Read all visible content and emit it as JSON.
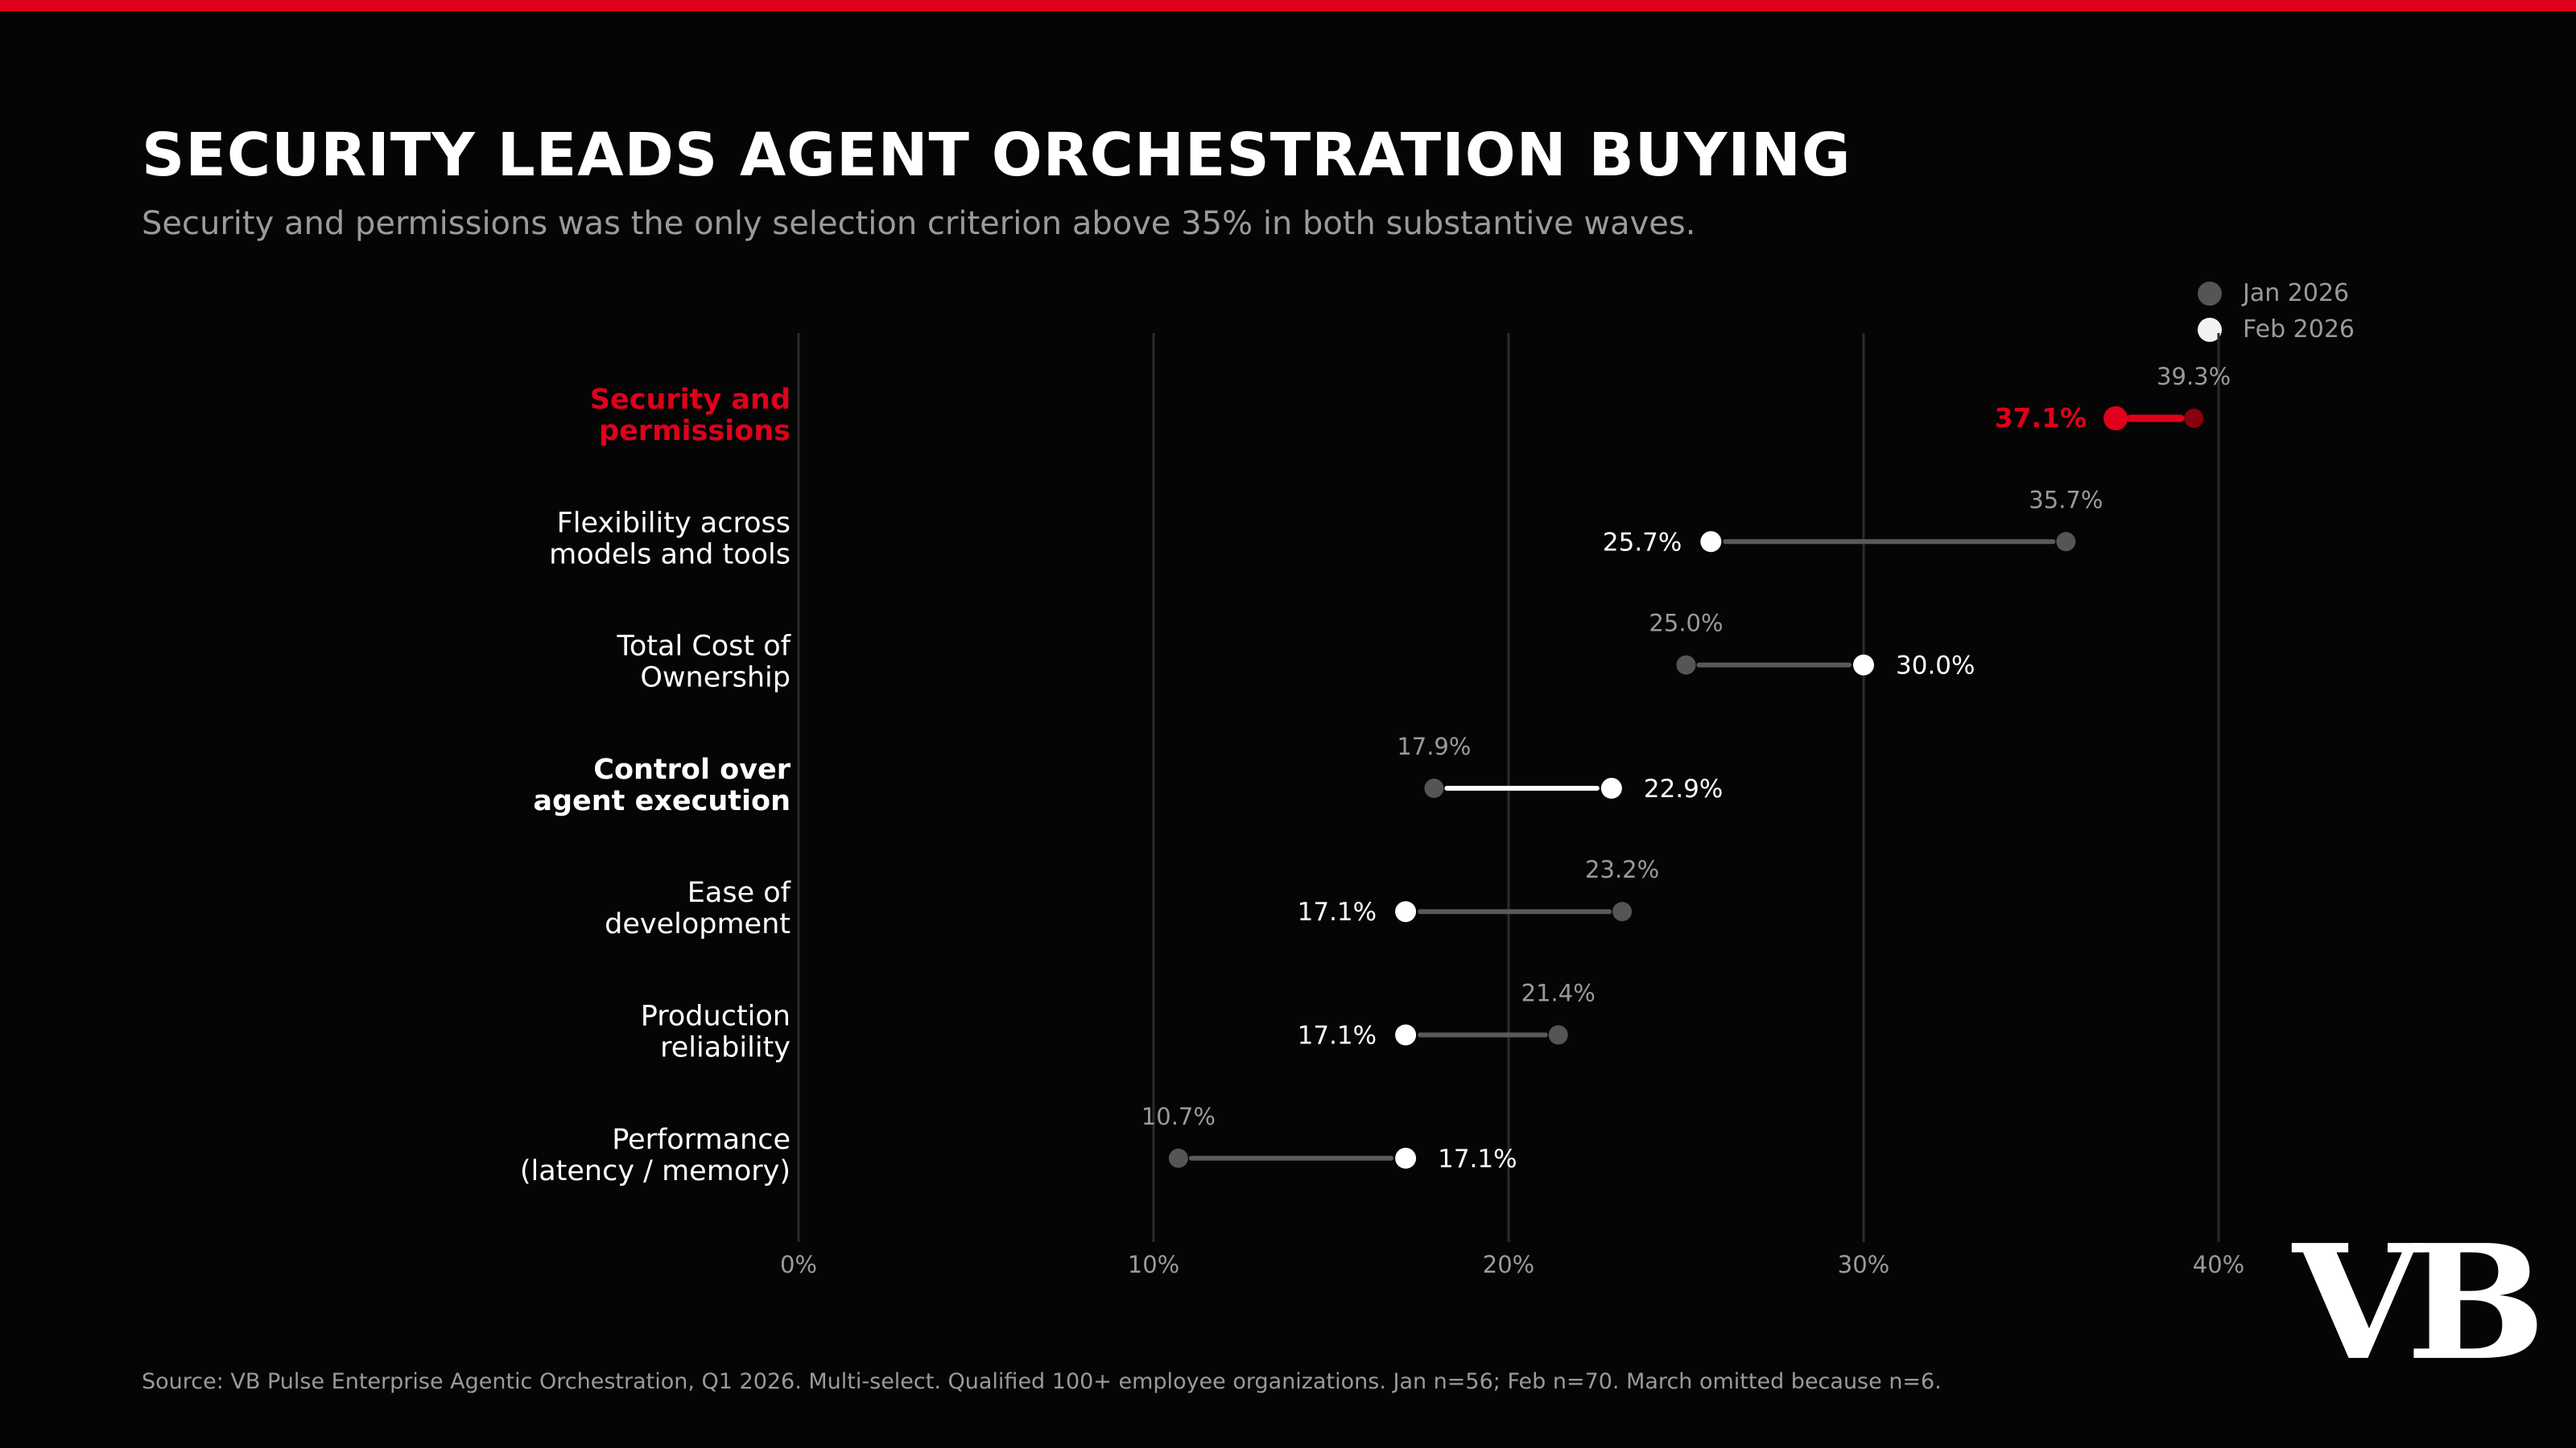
{
  "header": {
    "title": "SECURITY LEADS AGENT ORCHESTRATION BUYING",
    "subtitle": "Security and permissions was the only selection criterion above 35% in both substantive waves."
  },
  "legend": {
    "items": [
      {
        "label": "Jan 2026",
        "color": "#555555"
      },
      {
        "label": "Feb 2026",
        "color": "#f2f2f2"
      }
    ]
  },
  "footer": {
    "source": "Source: VB Pulse Enterprise Agentic Orchestration, Q1 2026. Multi-select. Qualified 100+ employee organizations. Jan n=56; Feb n=70. March omitted because n=6."
  },
  "brand": {
    "logo_text": "VB"
  },
  "colors": {
    "background": "#050505",
    "accent": "#e0001b",
    "accent_dark": "#8a0010",
    "jan": "#555555",
    "feb": "#ffffff",
    "muted_text": "#9a9a9a",
    "gridline": "#2b2b2b"
  },
  "chart_data": {
    "type": "dumbbell",
    "x_ticks": [
      "0%",
      "10%",
      "20%",
      "30%",
      "40%"
    ],
    "xlim": [
      0,
      40
    ],
    "grid": true,
    "legend_position": "top-right",
    "series": [
      {
        "name": "Jan 2026"
      },
      {
        "name": "Feb 2026"
      }
    ],
    "rows": [
      {
        "category": [
          "Security and",
          "permissions"
        ],
        "jan": 39.3,
        "feb": 37.1,
        "jan_label": "39.3%",
        "feb_label": "37.1%",
        "style": "accent"
      },
      {
        "category": [
          "Flexibility across",
          "models and tools"
        ],
        "jan": 35.7,
        "feb": 25.7,
        "jan_label": "35.7%",
        "feb_label": "25.7%",
        "style": "normal"
      },
      {
        "category": [
          "Total Cost of",
          "Ownership"
        ],
        "jan": 25.0,
        "feb": 30.0,
        "jan_label": "25.0%",
        "feb_label": "30.0%",
        "style": "normal"
      },
      {
        "category": [
          "Control over",
          "agent execution"
        ],
        "jan": 17.9,
        "feb": 22.9,
        "jan_label": "17.9%",
        "feb_label": "22.9%",
        "style": "bold"
      },
      {
        "category": [
          "Ease of",
          "development"
        ],
        "jan": 23.2,
        "feb": 17.1,
        "jan_label": "23.2%",
        "feb_label": "17.1%",
        "style": "normal"
      },
      {
        "category": [
          "Production",
          "reliability"
        ],
        "jan": 21.4,
        "feb": 17.1,
        "jan_label": "21.4%",
        "feb_label": "17.1%",
        "style": "normal"
      },
      {
        "category": [
          "Performance",
          "(latency / memory)"
        ],
        "jan": 10.7,
        "feb": 17.1,
        "jan_label": "10.7%",
        "feb_label": "17.1%",
        "style": "normal"
      }
    ]
  }
}
